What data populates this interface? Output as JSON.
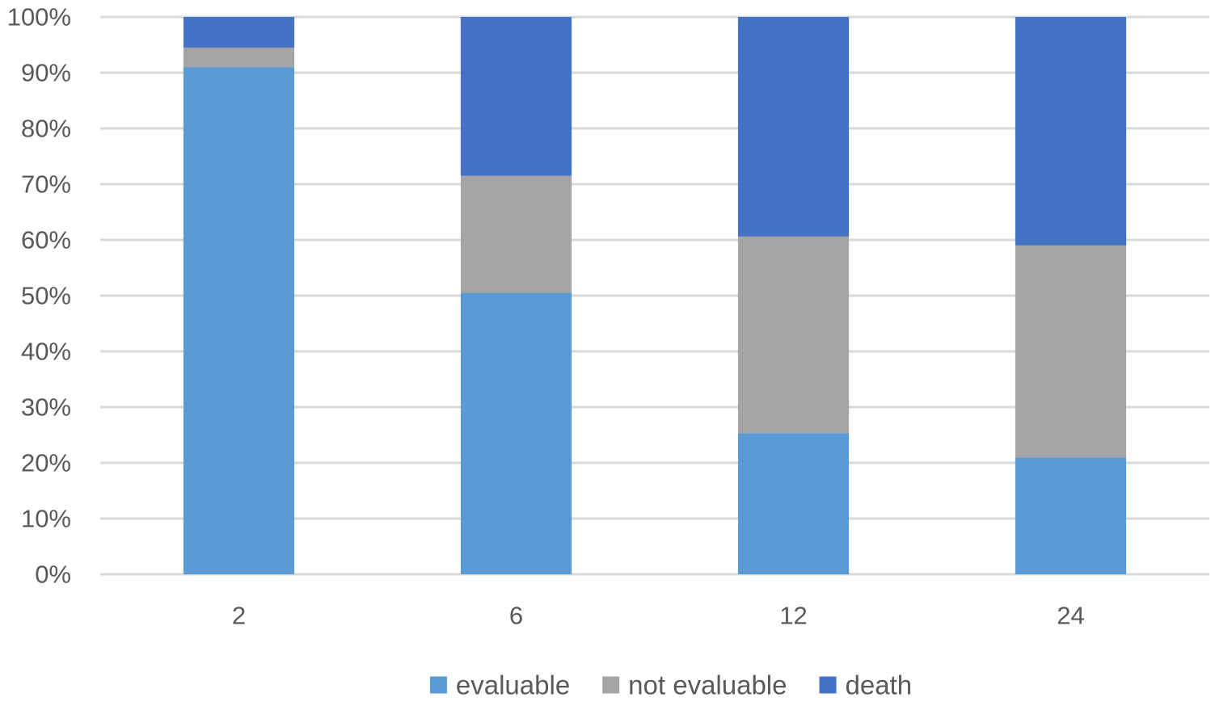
{
  "chart_data": {
    "type": "bar",
    "stacked": true,
    "categories": [
      "2",
      "6",
      "12",
      "24"
    ],
    "series": [
      {
        "name": "evaluable",
        "color": "#5B9BD5",
        "values": [
          91,
          50.5,
          25.3,
          21
        ]
      },
      {
        "name": "not evaluable",
        "color": "#A5A5A5",
        "values": [
          3.5,
          21,
          35.3,
          38
        ]
      },
      {
        "name": "death",
        "color": "#4472C4",
        "values": [
          5.5,
          28.5,
          39.4,
          41
        ]
      }
    ],
    "title": "",
    "xlabel": "",
    "ylabel": "",
    "ylim": [
      0,
      100
    ],
    "y_ticks": [
      "0%",
      "10%",
      "20%",
      "30%",
      "40%",
      "50%",
      "60%",
      "70%",
      "80%",
      "90%",
      "100%"
    ],
    "grid": true,
    "legend_position": "bottom",
    "gridline_color": "#D9D9D9",
    "text_color": "#595959"
  }
}
